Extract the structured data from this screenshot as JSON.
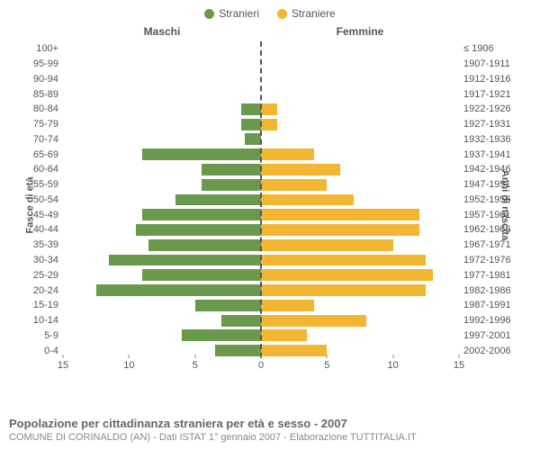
{
  "chart": {
    "type": "population-pyramid",
    "legend": [
      {
        "label": "Stranieri",
        "color": "#6a994e"
      },
      {
        "label": "Straniere",
        "color": "#f2b632"
      }
    ],
    "title_left": "Maschi",
    "title_right": "Femmine",
    "yaxis_left": "Fasce di età",
    "yaxis_right": "Anni di nascita",
    "xmax": 15,
    "xticks_left": [
      15,
      10,
      5,
      0
    ],
    "xticks_right": [
      5,
      10,
      15
    ],
    "background_color": "#ffffff",
    "centerline_color": "#555555",
    "bar_color_left": "#6a994e",
    "bar_color_right": "#f2b632",
    "label_fontsize": 11,
    "title_fontsize": 12,
    "rows": [
      {
        "age": "0-4",
        "birth": "2002-2006",
        "m": 3.5,
        "f": 5.0
      },
      {
        "age": "5-9",
        "birth": "1997-2001",
        "m": 6.0,
        "f": 3.5
      },
      {
        "age": "10-14",
        "birth": "1992-1996",
        "m": 3.0,
        "f": 8.0
      },
      {
        "age": "15-19",
        "birth": "1987-1991",
        "m": 5.0,
        "f": 4.0
      },
      {
        "age": "20-24",
        "birth": "1982-1986",
        "m": 12.5,
        "f": 12.5
      },
      {
        "age": "25-29",
        "birth": "1977-1981",
        "m": 9.0,
        "f": 13.0
      },
      {
        "age": "30-34",
        "birth": "1972-1976",
        "m": 11.5,
        "f": 12.5
      },
      {
        "age": "35-39",
        "birth": "1967-1971",
        "m": 8.5,
        "f": 10.0
      },
      {
        "age": "40-44",
        "birth": "1962-1966",
        "m": 9.5,
        "f": 12.0
      },
      {
        "age": "45-49",
        "birth": "1957-1961",
        "m": 9.0,
        "f": 12.0
      },
      {
        "age": "50-54",
        "birth": "1952-1956",
        "m": 6.5,
        "f": 7.0
      },
      {
        "age": "55-59",
        "birth": "1947-1951",
        "m": 4.5,
        "f": 5.0
      },
      {
        "age": "60-64",
        "birth": "1942-1946",
        "m": 4.5,
        "f": 6.0
      },
      {
        "age": "65-69",
        "birth": "1937-1941",
        "m": 9.0,
        "f": 4.0
      },
      {
        "age": "70-74",
        "birth": "1932-1936",
        "m": 1.2,
        "f": 0.0
      },
      {
        "age": "75-79",
        "birth": "1927-1931",
        "m": 1.5,
        "f": 1.2
      },
      {
        "age": "80-84",
        "birth": "1922-1926",
        "m": 1.5,
        "f": 1.2
      },
      {
        "age": "85-89",
        "birth": "1917-1921",
        "m": 0.0,
        "f": 0.0
      },
      {
        "age": "90-94",
        "birth": "1912-1916",
        "m": 0.0,
        "f": 0.0
      },
      {
        "age": "95-99",
        "birth": "1907-1911",
        "m": 0.0,
        "f": 0.0
      },
      {
        "age": "100+",
        "birth": "≤ 1906",
        "m": 0.0,
        "f": 0.0
      }
    ]
  },
  "caption": {
    "title": "Popolazione per cittadinanza straniera per età e sesso - 2007",
    "sub": "COMUNE DI CORINALDO (AN) - Dati ISTAT 1° gennaio 2007 - Elaborazione TUTTITALIA.IT"
  }
}
